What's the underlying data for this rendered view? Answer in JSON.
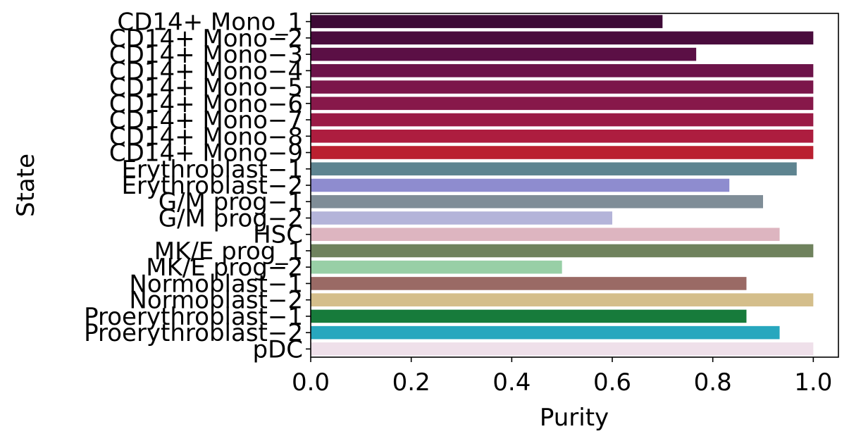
{
  "chart_data": {
    "type": "bar",
    "orientation": "horizontal",
    "xlabel": "Purity",
    "ylabel": "State",
    "xlim": [
      0.0,
      1.05
    ],
    "xticks": [
      "0.0",
      "0.2",
      "0.4",
      "0.6",
      "0.8",
      "1.0"
    ],
    "grid": false,
    "categories": [
      "CD14+ Mono_1",
      "CD14+ Mono−2",
      "CD14+ Mono−3",
      "CD14+ Mono−4",
      "CD14+ Mono−5",
      "CD14+ Mono−6",
      "CD14+ Mono−7",
      "CD14+ Mono−8",
      "CD14+ Mono−9",
      "Erythroblast−1",
      "Erythroblast−2",
      "G/M prog−1",
      "G/M prog−2",
      "HSC",
      "MK/E prog_1",
      "MK/E prog−2",
      "Normoblast−1",
      "Normoblast−2",
      "Proerythroblast−1",
      "Proerythroblast−2",
      "pDC"
    ],
    "values": [
      0.7,
      1.0,
      0.767,
      1.0,
      1.0,
      1.0,
      1.0,
      1.0,
      1.0,
      0.967,
      0.833,
      0.9,
      0.6,
      0.933,
      1.0,
      0.5,
      0.867,
      1.0,
      0.867,
      0.933,
      1.0
    ],
    "colors": [
      "#3d0a36",
      "#4a0c3d",
      "#5b0f45",
      "#6d1349",
      "#7b164a",
      "#87184a",
      "#9a1b45",
      "#ad1d3f",
      "#ba2030",
      "#5e8490",
      "#8e8ccf",
      "#7f8d97",
      "#b4b4d9",
      "#ddb5c0",
      "#6f825d",
      "#98cfa6",
      "#9a6a65",
      "#d4be8b",
      "#177b3b",
      "#27a7be",
      "#efe0ea"
    ]
  }
}
